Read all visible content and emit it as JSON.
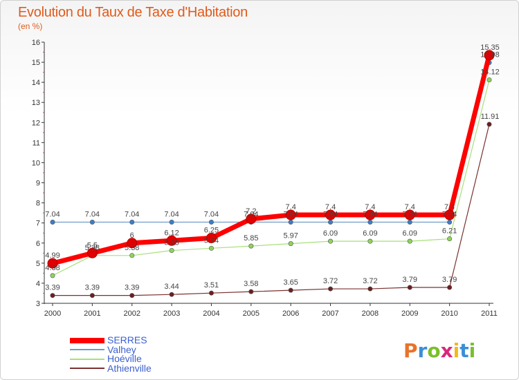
{
  "title": "Evolution du Taux de Taxe d'Habitation",
  "subtitle": "(en %)",
  "brand": {
    "letters": [
      "P",
      "r",
      "o",
      "x",
      "i",
      "t",
      "i"
    ],
    "colors": [
      "#e8732a",
      "#3a8fd6",
      "#7bbf2a",
      "#d8287b",
      "#f3b81a",
      "#3a8fd6",
      "#7bbf2a"
    ]
  },
  "chart_data": {
    "type": "line",
    "x": [
      "2000",
      "2001",
      "2002",
      "2003",
      "2004",
      "2005",
      "2006",
      "2007",
      "2008",
      "2009",
      "2010",
      "2011"
    ],
    "ylim": [
      3,
      16
    ],
    "yticks": [
      3,
      4,
      5,
      6,
      7,
      8,
      9,
      10,
      11,
      12,
      13,
      14,
      15,
      16
    ],
    "grid": false,
    "legend_position": "bottom-left",
    "series": [
      {
        "name": "Athienville",
        "color": "#6b1f1f",
        "line_color": "#7a3030",
        "width": 1.2,
        "values": [
          3.39,
          3.39,
          3.39,
          3.44,
          3.51,
          3.58,
          3.65,
          3.72,
          3.72,
          3.79,
          3.79,
          11.91
        ],
        "labels": [
          "3.39",
          "3.39",
          "3.39",
          "3.44",
          "3.51",
          "3.58",
          "3.65",
          "3.72",
          "3.72",
          "3.79",
          "3.79",
          "11.91"
        ]
      },
      {
        "name": "Hoéville",
        "color": "#8ed45a",
        "line_color": "#a7e07a",
        "width": 1.2,
        "values": [
          4.38,
          5.38,
          5.38,
          5.63,
          5.74,
          5.85,
          5.97,
          6.09,
          6.09,
          6.09,
          6.21,
          14.12
        ],
        "labels": [
          "4.38",
          "5.38",
          "5.38",
          "5.63",
          "5.74",
          "5.85",
          "5.97",
          "6.09",
          "6.09",
          "6.09",
          "6.21",
          "14.12"
        ]
      },
      {
        "name": "Valhey",
        "color": "#3a7fc9",
        "line_color": "#6f9cc9",
        "width": 1.2,
        "values": [
          7.04,
          7.04,
          7.04,
          7.04,
          7.04,
          7.04,
          7.04,
          7.04,
          7.04,
          7.04,
          7.04,
          14.98
        ],
        "labels": [
          "7.04",
          "7.04",
          "7.04",
          "7.04",
          "7.04",
          "7.04",
          "7.04",
          "7.04",
          "7.04",
          "7.04",
          "7.04",
          "14.98"
        ]
      },
      {
        "name": "SERRES",
        "color": "#e00000",
        "line_color": "#ff0000",
        "width": 7,
        "values": [
          4.99,
          5.5,
          6,
          6.12,
          6.25,
          7.2,
          7.4,
          7.4,
          7.4,
          7.4,
          7.4,
          15.35
        ],
        "labels": [
          "4.99",
          "5.5",
          "6",
          "6.12",
          "6.25",
          "7.2",
          "7.4",
          "7.4",
          "7.4",
          "7.4",
          "7.4",
          "15.35"
        ]
      }
    ],
    "legend_order": [
      "SERRES",
      "Valhey",
      "Hoéville",
      "Athienville"
    ]
  }
}
